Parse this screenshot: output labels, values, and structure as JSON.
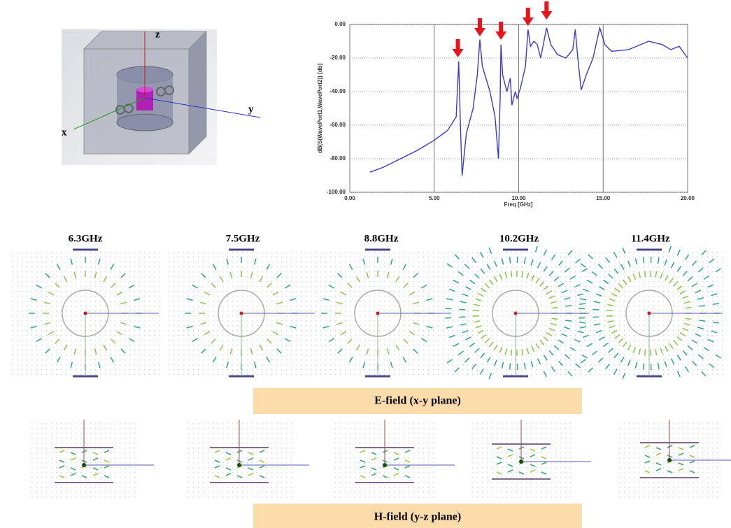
{
  "model": {
    "axis_labels": [
      "z",
      "y",
      "x"
    ]
  },
  "chart_data": {
    "type": "line",
    "x_label": "Freq [GHz]",
    "y_label": "dB(S(WavePort1,WavePort2)) [db]",
    "xlim": [
      0,
      20
    ],
    "xticks": [
      {
        "value": 0,
        "label": "0.00"
      },
      {
        "value": 5,
        "label": "5.00"
      },
      {
        "value": 10,
        "label": "10.00"
      },
      {
        "value": 15,
        "label": "15.00"
      },
      {
        "value": 20,
        "label": "20.00"
      }
    ],
    "ylim": [
      -100,
      0
    ],
    "yticks": [
      {
        "value": -100,
        "label": "-100.00"
      },
      {
        "value": -80,
        "label": "-80.00"
      },
      {
        "value": -60,
        "label": "-60.00"
      },
      {
        "value": -40,
        "label": "-40.00"
      },
      {
        "value": -20,
        "label": "-20.00"
      },
      {
        "value": 0,
        "label": "0.00"
      }
    ],
    "grid": true,
    "markers": [
      6.4,
      7.7,
      8.95,
      10.55,
      11.65
    ],
    "marker_color": "#e8141b",
    "series": [
      {
        "color": "#3a3ad0",
        "x": [
          1.2,
          2,
          3,
          4,
          5,
          5.8,
          6.3,
          6.45,
          6.55,
          6.65,
          6.9,
          7.3,
          7.55,
          7.7,
          7.85,
          8.3,
          8.6,
          8.8,
          8.9,
          8.95,
          9.05,
          9.3,
          9.5,
          9.6,
          9.8,
          9.9,
          10.1,
          10.4,
          10.55,
          10.7,
          10.9,
          11.1,
          11.3,
          11.65,
          11.9,
          12.3,
          12.8,
          13.2,
          13.35,
          13.5,
          13.7,
          14.0,
          14.4,
          14.8,
          15.1,
          15.5,
          16.5,
          17.7,
          18.5,
          19,
          19.5,
          20
        ],
        "values": [
          -88,
          -85,
          -80,
          -75,
          -69,
          -63,
          -55,
          -22,
          -60,
          -90,
          -65,
          -50,
          -30,
          -9,
          -25,
          -40,
          -55,
          -80,
          -45,
          -12,
          -30,
          -40,
          -32,
          -48,
          -40,
          -44,
          -38,
          -25,
          -3,
          -13,
          -10,
          -12,
          -20,
          -2,
          -12,
          -18,
          -20,
          -15,
          -3,
          -20,
          -39,
          -30,
          -20,
          -2,
          -12,
          -16,
          -15,
          -10,
          -12,
          -15,
          -13,
          -20
        ]
      }
    ]
  },
  "field_maps": {
    "frequencies": [
      "6.3GHz",
      "7.5GHz",
      "8.8GHz",
      "10.2GHz",
      "11.4GHz"
    ],
    "e_field_caption": "E-field (x-y plane)",
    "h_field_caption": "H-field (y-z plane)"
  }
}
